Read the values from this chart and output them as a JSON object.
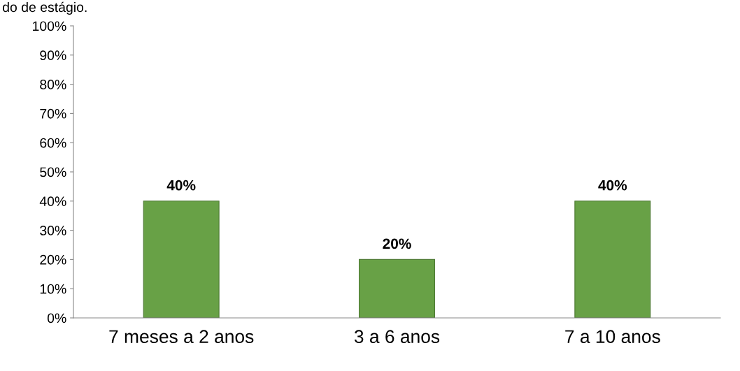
{
  "chart_data": {
    "type": "bar",
    "title": "do de estágio.",
    "categories": [
      "7 meses a 2 anos",
      "3 a 6 anos",
      "7 a 10 anos"
    ],
    "values": [
      40,
      20,
      40
    ],
    "color": "#68a146",
    "value_labels": [
      "40%",
      "20%",
      "40%"
    ],
    "ylim": [
      0,
      100
    ],
    "yticks": [
      {
        "value": 0,
        "label": "0%"
      },
      {
        "value": 10,
        "label": "10%"
      },
      {
        "value": 20,
        "label": "20%"
      },
      {
        "value": 30,
        "label": "30%"
      },
      {
        "value": 40,
        "label": "40%"
      },
      {
        "value": 50,
        "label": "50%"
      },
      {
        "value": 60,
        "label": "60%"
      },
      {
        "value": 70,
        "label": "70%"
      },
      {
        "value": 80,
        "label": "80%"
      },
      {
        "value": 90,
        "label": "90%"
      },
      {
        "value": 100,
        "label": "100%"
      }
    ],
    "grid": false,
    "legend": false
  }
}
